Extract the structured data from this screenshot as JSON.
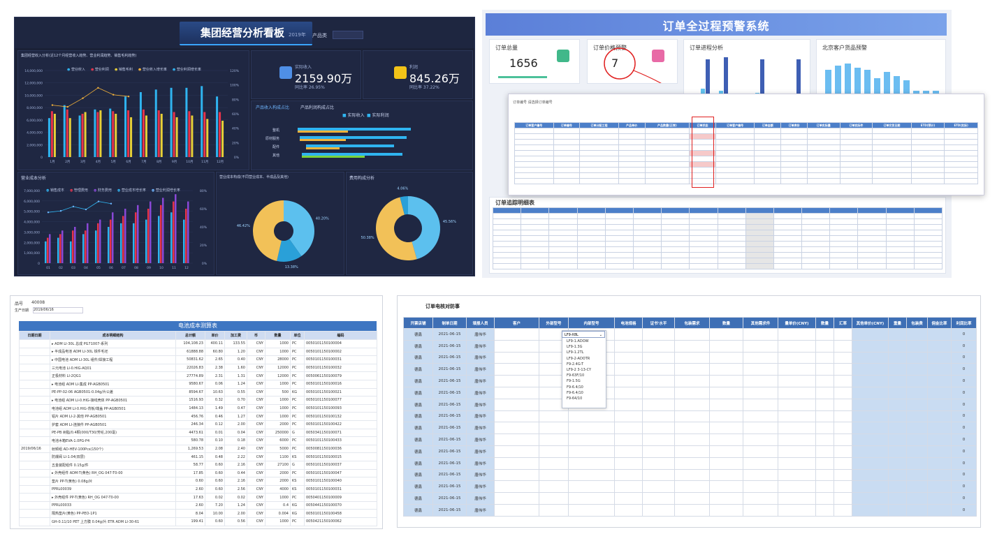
{
  "panel_a": {
    "title": "集团经营分析看板",
    "title_sub": "2019年",
    "product_label": "产品类",
    "bar_chart_title": "集团经营收入分析(近12个月经营收入趋势、营业利润趋势、销售毛利趋势)",
    "legend1": [
      "营业收入",
      "营业利润",
      "销售毛利",
      "营业收入增长率",
      "营业利润增长率"
    ],
    "legend1_colors": [
      "#2fb4f0",
      "#e7334b",
      "#e8d037",
      "#f5b33a",
      "#2fb4f0"
    ],
    "y_ticks1": [
      "14,000,000",
      "12,000,000",
      "10,000,000",
      "8,000,000",
      "6,000,000",
      "4,000,000",
      "2,000,000",
      "0"
    ],
    "y2_ticks1": [
      "120%",
      "100%",
      "80%",
      "60%",
      "40%",
      "20%",
      "0%"
    ],
    "x_ticks1": [
      "1月",
      "2月",
      "3月",
      "4月",
      "5月",
      "6月",
      "7月",
      "8月",
      "9月",
      "10月",
      "11月",
      "12月"
    ],
    "kpi1": {
      "label": "实际收入",
      "value": "2159.90万",
      "sub": "同比率 26.95%"
    },
    "kpi2": {
      "label": "利润",
      "value": "845.26万",
      "sub": "同比率 37.22%"
    },
    "hbar_tabs": [
      "产品收入构成占比",
      "产品利润构成占比"
    ],
    "hbar_legend": [
      "实际收入",
      "实际利润"
    ],
    "hbar_cats": [
      "整机",
      "原材服务",
      "配件",
      "其他"
    ],
    "chart2_title": "营业成本分析",
    "legend2": [
      "销售成本",
      "管理费用",
      "财务费用",
      "营业成本增长率",
      "营业利润增长率"
    ],
    "y_ticks2": [
      "7,000,000",
      "6,000,000",
      "5,000,000",
      "4,000,000",
      "3,000,000",
      "2,000,000",
      "1,000,000",
      "0"
    ],
    "y2_ticks2": [
      "80%",
      "60%",
      "40%",
      "20%",
      "0%"
    ],
    "x_ticks2": [
      "01",
      "02",
      "03",
      "04",
      "05",
      "06",
      "07",
      "08",
      "09",
      "10",
      "11",
      "12"
    ],
    "pie1_title": "营业成本构成(不同营业成本、半成品及其他)",
    "pie2_title": "费用构成分析",
    "pie1_labels": [
      "40.20%",
      "13.38%",
      "46.42%"
    ],
    "pie2_labels": [
      "45.56%",
      "50.38%",
      "4.06%"
    ]
  },
  "panel_b": {
    "title": "订单全过程预警系统",
    "card1": {
      "label": "订单总量",
      "value": "1656"
    },
    "card2": {
      "label": "订单价格预警",
      "value": "7"
    },
    "chart1_title": "订单进程分析",
    "chart2_title": "北京客户货品预警",
    "overlay_filter": "订单编号  请选择订单编号",
    "overlay_headers": [
      "订单客户编号",
      "订单编号",
      "订单分配工程",
      "产品单价",
      "产品数量(正常)",
      "订单状态",
      "订单客户编号",
      "订单金额",
      "订单库存",
      "订单实际量",
      "订单实际件",
      "订单交货日期",
      "ETD(预计)",
      "ETD(实际)"
    ],
    "detail_title": "订单追踪明细表"
  },
  "panel_c": {
    "search_label": "品号",
    "search_value": "40008",
    "filter_label": "生产日期",
    "filter_value": "2019/06/16",
    "banner": "电池成本测算表",
    "headers": [
      "日期日期",
      "成本明细结构",
      "总计额",
      "单价",
      "加工费",
      "币",
      "数量",
      "单位",
      "编码"
    ],
    "date": "2019/06/16",
    "rows": [
      [
        "▸ ADM LI-30L 总成 PG71007-系列",
        "104,108.23",
        "400.11",
        "133.55",
        "CNY",
        "1000",
        "PC",
        "0050101150100004"
      ],
      [
        "  ▸ 半成品电池 ADM LI-30L 铁件毛坯",
        "61888.88",
        "60.80",
        "1.20",
        "CNY",
        "1000",
        "PC",
        "0050101150100002"
      ],
      [
        "    ▸ 中国电池 ADM LI-30L 组件/焊接工程",
        "50831.62",
        "2.65",
        "0.40",
        "CNY",
        "28000",
        "PC",
        "0050101150100031"
      ],
      [
        "      三元电池 LI-0.HIG-AQ01",
        "22026.83",
        "2.38",
        "1.60",
        "CNY",
        "12000",
        "PC",
        "0050101150100032"
      ],
      [
        "      正极材料 LI-2QG1",
        "27774.89",
        "2.31",
        "1.31",
        "CNY",
        "12000",
        "PC",
        "0050061150100079"
      ],
      [
        "    ▸ 电池组 ADM LI-集成 PP-AGB0501",
        "9580.67",
        "0.06",
        "1.24",
        "CNY",
        "1000",
        "PC",
        "0050101150100016"
      ],
      [
        "      PE-PP-02-06 AGB0501-0.04g/片公差",
        "8594.67",
        "10.63",
        "0.55",
        "CNY",
        "500",
        "KG",
        "0050101150100021"
      ],
      [
        "    ▸ 电池组 ADM LI-0.HIG-接线壳体 PP-AGB0501",
        "1516.93",
        "0.32",
        "0.70",
        "CNY",
        "1000",
        "PC",
        "0050101150100077"
      ],
      [
        "      电池组 ADM LI-0.HIG-背板/端盖 PP-AGB0501",
        "1484.13",
        "1.49",
        "0.47",
        "CNY",
        "1000",
        "PC",
        "0050101150100093"
      ],
      [
        "      铝片 ADM LI-2-其他 PP-AGB0501",
        "456.76",
        "0.46",
        "1.27",
        "CNY",
        "1000",
        "PC",
        "0050101150100132"
      ],
      [
        "      护套 ADM LI-连接件 PP-AGB0501",
        "246.34",
        "0.12",
        "2.00",
        "CNY",
        "2000",
        "PC",
        "0050101150100422"
      ],
      [
        "    PE-PB 树脂/0.4颗(000/T30/芳纶,200毫)",
        "4473.61",
        "0.01",
        "0.04",
        "CNY",
        "250000",
        "G",
        "0050341150100071"
      ],
      [
        "      电池木箱EVA-1.0PG-P4",
        "580.78",
        "0.10",
        "0.18",
        "CNY",
        "6000",
        "PC",
        "0050101150100433"
      ],
      [
        "    射频组 AD-HEV-100Pcs(150个)",
        "1,269.53",
        "2.08",
        "2.40",
        "CNY",
        "5000",
        "PC",
        "0050081150100036"
      ],
      [
        "    防爆阀 LI-1.04(双层)",
        "461.15",
        "0.48",
        "2.22",
        "CNY",
        "1100",
        "KS",
        "0050101150100015"
      ],
      [
        "    五金装配组件 0.15g/件",
        "58.77",
        "0.60",
        "2.16",
        "CNY",
        "27100",
        "G",
        "0050101150100037"
      ],
      [
        "  ▸ 外壳组件 ADM-T(黄色) RH_OG 047-T0-00",
        "17.85",
        "0.60",
        "0.44",
        "CNY",
        "2000",
        "PC",
        "0050101150100047"
      ],
      [
        "      垫片 PP-T(黄色) 0.08g/片",
        "0.60",
        "0.60",
        "2.16",
        "CNY",
        "2000",
        "KS",
        "0050101150100040"
      ],
      [
        "      PPRL00039",
        "2.60",
        "0.60",
        "2.56",
        "CNY",
        "4000",
        "KS",
        "0050101150100031"
      ],
      [
        "  ▸ 外壳组件 PP-T(黄色) RH_OG 047-T0-00",
        "17.63",
        "0.02",
        "0.02",
        "CNY",
        "1000",
        "PC",
        "0050401150100009"
      ],
      [
        "      PPRL00033",
        "2.60",
        "7.20",
        "1.24",
        "CNY",
        "0.4",
        "KG",
        "0050441150100070"
      ],
      [
        "      隔热垫片(黄色) PP-PEO-1P1",
        "8.04",
        "10.00",
        "2.00",
        "CNY",
        "0.004",
        "KG",
        "0050101150100458"
      ],
      [
        "  GH-0.11/10 PET 上方膜 0.04g/片 ETR ADM LI-30-61",
        "199.41",
        "0.60",
        "0.56",
        "CNY",
        "1000",
        "PC",
        "0050421150100062"
      ]
    ]
  },
  "panel_d": {
    "title": "订单电核对防事",
    "headers": [
      "开票店铺",
      "制单日期",
      "填报人员",
      "客户",
      "外部型号",
      "内部型号",
      "电池规格",
      "证书'水平",
      "包装需求",
      "数量",
      "其他需求件",
      "量单价(CNY)",
      "数量",
      "汇率",
      "其他单价(CNY)",
      "重量",
      "包装费",
      "佣金比率",
      "利润比率"
    ],
    "row_store": "德鑫",
    "row_date": "2021-06-15",
    "row_user": "唐伟华",
    "row_end": "0",
    "row_count": 16,
    "dropdown_selected": "LF9-X8L",
    "dropdown_options": [
      "LF9-X8L",
      "LF9-1.ADOW",
      "LF9-1.3G",
      "LF9-1.2TL",
      "LF9-2-ADOTR",
      "F9-2.4G-T",
      "LF9-2 3-13-CY",
      "F9-63F/10",
      "F9-1.5G",
      "F9-6.4/10",
      "F9-6.4/10",
      "F9-64/10"
    ]
  }
}
